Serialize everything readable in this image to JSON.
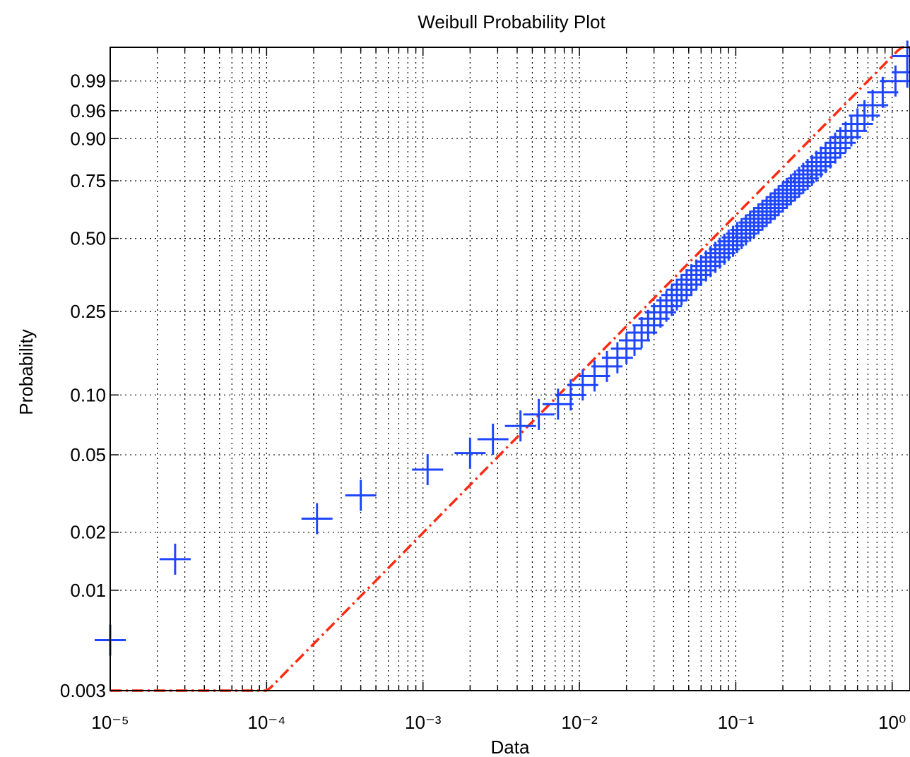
{
  "chart_data": {
    "type": "scatter",
    "title": "Weibull Probability Plot",
    "xlabel": "Data",
    "ylabel": "Probability",
    "x_scale": "log",
    "y_scale": "weibull",
    "xlim": [
      1e-05,
      1.3
    ],
    "ylim": [
      0.003,
      0.999
    ],
    "grid": true,
    "x_ticks": [
      {
        "value": 1e-05,
        "label": "10⁻⁵"
      },
      {
        "value": 0.0001,
        "label": "10⁻⁴"
      },
      {
        "value": 0.001,
        "label": "10⁻³"
      },
      {
        "value": 0.01,
        "label": "10⁻²"
      },
      {
        "value": 0.1,
        "label": "10⁻¹"
      },
      {
        "value": 1,
        "label": "10⁰"
      }
    ],
    "y_ticks": [
      {
        "value": 0.003,
        "label": "0.003"
      },
      {
        "value": 0.01,
        "label": "0.01"
      },
      {
        "value": 0.02,
        "label": "0.02"
      },
      {
        "value": 0.05,
        "label": "0.05"
      },
      {
        "value": 0.1,
        "label": "0.10"
      },
      {
        "value": 0.25,
        "label": "0.25"
      },
      {
        "value": 0.5,
        "label": "0.50"
      },
      {
        "value": 0.75,
        "label": "0.75"
      },
      {
        "value": 0.9,
        "label": "0.90"
      },
      {
        "value": 0.96,
        "label": "0.96"
      },
      {
        "value": 0.99,
        "label": "0.99"
      }
    ],
    "series": [
      {
        "marker": "+",
        "color": "#1f46ff",
        "points": [
          [
            1e-05,
            0.0055
          ],
          [
            2.6e-05,
            0.0145
          ],
          [
            0.00021,
            0.0235
          ],
          [
            0.0004,
            0.031
          ],
          [
            0.00107,
            0.042
          ],
          [
            0.002,
            0.051
          ],
          [
            0.0028,
            0.06
          ],
          [
            0.0042,
            0.07
          ],
          [
            0.0055,
            0.08
          ],
          [
            0.0073,
            0.09
          ],
          [
            0.0088,
            0.1
          ],
          [
            0.0105,
            0.112
          ],
          [
            0.0125,
            0.124
          ],
          [
            0.015,
            0.138
          ],
          [
            0.0175,
            0.152
          ],
          [
            0.02,
            0.168
          ],
          [
            0.0225,
            0.184
          ],
          [
            0.025,
            0.2
          ],
          [
            0.0275,
            0.216
          ],
          [
            0.03,
            0.232
          ],
          [
            0.033,
            0.248
          ],
          [
            0.036,
            0.264
          ],
          [
            0.039,
            0.28
          ],
          [
            0.042,
            0.296
          ],
          [
            0.045,
            0.312
          ],
          [
            0.0485,
            0.328
          ],
          [
            0.052,
            0.344
          ],
          [
            0.056,
            0.36
          ],
          [
            0.06,
            0.376
          ],
          [
            0.0645,
            0.392
          ],
          [
            0.069,
            0.408
          ],
          [
            0.074,
            0.424
          ],
          [
            0.079,
            0.44
          ],
          [
            0.0845,
            0.456
          ],
          [
            0.09,
            0.472
          ],
          [
            0.096,
            0.488
          ],
          [
            0.102,
            0.504
          ],
          [
            0.109,
            0.52
          ],
          [
            0.116,
            0.536
          ],
          [
            0.1235,
            0.552
          ],
          [
            0.131,
            0.568
          ],
          [
            0.1395,
            0.584
          ],
          [
            0.148,
            0.6
          ],
          [
            0.1575,
            0.616
          ],
          [
            0.167,
            0.632
          ],
          [
            0.1775,
            0.648
          ],
          [
            0.188,
            0.664
          ],
          [
            0.2,
            0.68
          ],
          [
            0.212,
            0.696
          ],
          [
            0.225,
            0.712
          ],
          [
            0.239,
            0.728
          ],
          [
            0.254,
            0.744
          ],
          [
            0.27,
            0.76
          ],
          [
            0.288,
            0.776
          ],
          [
            0.307,
            0.792
          ],
          [
            0.328,
            0.808
          ],
          [
            0.35,
            0.824
          ],
          [
            0.375,
            0.84
          ],
          [
            0.402,
            0.856
          ],
          [
            0.432,
            0.872
          ],
          [
            0.466,
            0.888
          ],
          [
            0.504,
            0.904
          ],
          [
            0.548,
            0.92
          ],
          [
            0.6,
            0.936
          ],
          [
            0.665,
            0.952
          ],
          [
            0.75,
            0.968
          ],
          [
            0.87,
            0.982
          ],
          [
            1.05,
            0.99
          ],
          [
            1.25,
            0.994
          ],
          [
            1.25,
            0.998
          ]
        ]
      }
    ],
    "fit_line": {
      "color": "#ff2a12",
      "style": "dash-dot",
      "shape": 0.83,
      "scale": 0.111
    }
  }
}
